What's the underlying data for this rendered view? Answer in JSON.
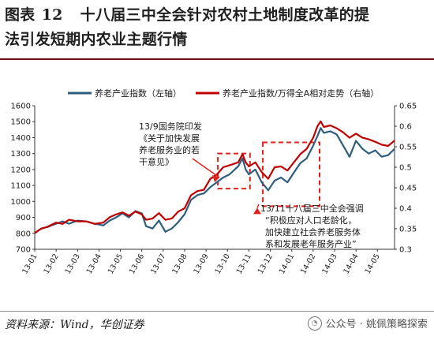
{
  "header": {
    "label": "图表",
    "number": "12",
    "title_line1": "十八届三中全会针对农村土地制度改革的提",
    "title_line2": "法引发短期内农业主题行情"
  },
  "footer": {
    "source": "资料来源：Wind，华创证券",
    "watermark": "公众号 · 姚佩策略探索"
  },
  "chart_data": {
    "type": "line",
    "legend": [
      "养老产业指数（左轴）",
      "养老产业指数/万得全A相对走势（右轴）"
    ],
    "legend_position": "top",
    "x_labels": [
      "13-01",
      "13-02",
      "13-03",
      "13-04",
      "13-05",
      "13-06",
      "13-07",
      "13-08",
      "13-09",
      "13-10",
      "13-11",
      "13-12",
      "14-01",
      "14-02",
      "14-03",
      "14-04",
      "14-05"
    ],
    "y_left": {
      "ticks": [
        700,
        800,
        900,
        1000,
        1100,
        1200,
        1300,
        1400,
        1500,
        1600
      ],
      "range": [
        700,
        1600
      ]
    },
    "y_right": {
      "ticks": [
        0.3,
        0.35,
        0.4,
        0.45,
        0.5,
        0.55,
        0.6,
        0.65
      ],
      "range": [
        0.3,
        0.65
      ]
    },
    "series": [
      {
        "name": "养老产业指数（左轴）",
        "color": "#2e5e7e",
        "axis": "left",
        "points": [
          [
            0,
            800
          ],
          [
            0.3,
            830
          ],
          [
            0.6,
            840
          ],
          [
            1,
            860
          ],
          [
            1.3,
            875
          ],
          [
            1.6,
            860
          ],
          [
            2,
            880
          ],
          [
            2.4,
            875
          ],
          [
            2.8,
            860
          ],
          [
            3.2,
            850
          ],
          [
            3.5,
            880
          ],
          [
            3.8,
            900
          ],
          [
            4.1,
            925
          ],
          [
            4.4,
            900
          ],
          [
            4.7,
            940
          ],
          [
            5.0,
            925
          ],
          [
            5.2,
            845
          ],
          [
            5.5,
            830
          ],
          [
            5.8,
            880
          ],
          [
            6.1,
            810
          ],
          [
            6.4,
            830
          ],
          [
            6.7,
            870
          ],
          [
            7.0,
            920
          ],
          [
            7.3,
            1010
          ],
          [
            7.6,
            1040
          ],
          [
            7.9,
            1050
          ],
          [
            8.2,
            1090
          ],
          [
            8.5,
            1120
          ],
          [
            8.8,
            1150
          ],
          [
            9.1,
            1170
          ],
          [
            9.5,
            1220
          ],
          [
            9.7,
            1270
          ],
          [
            9.85,
            1200
          ],
          [
            10.0,
            1170
          ],
          [
            10.3,
            1200
          ],
          [
            10.6,
            1120
          ],
          [
            10.9,
            1070
          ],
          [
            11.2,
            1130
          ],
          [
            11.5,
            1150
          ],
          [
            11.8,
            1120
          ],
          [
            12.1,
            1180
          ],
          [
            12.4,
            1240
          ],
          [
            12.7,
            1270
          ],
          [
            13.0,
            1350
          ],
          [
            13.2,
            1410
          ],
          [
            13.35,
            1460
          ],
          [
            13.5,
            1430
          ],
          [
            13.8,
            1440
          ],
          [
            14.1,
            1420
          ],
          [
            14.4,
            1350
          ],
          [
            14.7,
            1280
          ],
          [
            15.0,
            1380
          ],
          [
            15.3,
            1330
          ],
          [
            15.6,
            1300
          ],
          [
            15.9,
            1320
          ],
          [
            16.2,
            1280
          ],
          [
            16.5,
            1290
          ],
          [
            16.8,
            1330
          ]
        ]
      },
      {
        "name": "养老产业指数/万得全A相对走势（右轴）",
        "color": "#c00000",
        "axis": "right",
        "points": [
          [
            0,
            0.34
          ],
          [
            0.3,
            0.35
          ],
          [
            0.6,
            0.355
          ],
          [
            1,
            0.365
          ],
          [
            1.3,
            0.362
          ],
          [
            1.6,
            0.372
          ],
          [
            2,
            0.368
          ],
          [
            2.4,
            0.368
          ],
          [
            2.8,
            0.362
          ],
          [
            3.2,
            0.365
          ],
          [
            3.5,
            0.378
          ],
          [
            3.8,
            0.385
          ],
          [
            4.1,
            0.39
          ],
          [
            4.4,
            0.382
          ],
          [
            4.7,
            0.392
          ],
          [
            5.0,
            0.385
          ],
          [
            5.2,
            0.372
          ],
          [
            5.5,
            0.375
          ],
          [
            5.8,
            0.388
          ],
          [
            6.1,
            0.372
          ],
          [
            6.4,
            0.375
          ],
          [
            6.7,
            0.392
          ],
          [
            7.0,
            0.4
          ],
          [
            7.3,
            0.432
          ],
          [
            7.6,
            0.442
          ],
          [
            7.9,
            0.445
          ],
          [
            8.2,
            0.472
          ],
          [
            8.5,
            0.482
          ],
          [
            8.8,
            0.5
          ],
          [
            9.1,
            0.505
          ],
          [
            9.5,
            0.512
          ],
          [
            9.7,
            0.532
          ],
          [
            9.85,
            0.512
          ],
          [
            10.0,
            0.502
          ],
          [
            10.3,
            0.512
          ],
          [
            10.6,
            0.488
          ],
          [
            10.9,
            0.472
          ],
          [
            11.2,
            0.5
          ],
          [
            11.5,
            0.502
          ],
          [
            11.8,
            0.492
          ],
          [
            12.1,
            0.512
          ],
          [
            12.4,
            0.532
          ],
          [
            12.7,
            0.545
          ],
          [
            13.0,
            0.572
          ],
          [
            13.2,
            0.6
          ],
          [
            13.35,
            0.612
          ],
          [
            13.5,
            0.598
          ],
          [
            13.8,
            0.602
          ],
          [
            14.1,
            0.595
          ],
          [
            14.4,
            0.585
          ],
          [
            14.7,
            0.572
          ],
          [
            15.0,
            0.582
          ],
          [
            15.3,
            0.572
          ],
          [
            15.6,
            0.568
          ],
          [
            15.9,
            0.562
          ],
          [
            16.2,
            0.555
          ],
          [
            16.5,
            0.552
          ],
          [
            16.8,
            0.565
          ]
        ]
      }
    ],
    "annotations": [
      {
        "text": [
          "13/9国务院印发",
          "《关于加快发展",
          "养老服务业的若",
          "干意见》"
        ]
      },
      {
        "text": [
          "13/11十八届三中全会强调",
          "“积极应对人口老龄化，",
          "加快建立社会养老服务体",
          "系和发展老年服务产业”"
        ]
      }
    ],
    "highlight_ranges": [
      {
        "x_from": 8.55,
        "x_to": 10.05,
        "y_from": 1080,
        "y_to": 1300
      },
      {
        "x_from": 10.65,
        "x_to": 13.3,
        "y_from": 970,
        "y_to": 1370
      }
    ]
  }
}
